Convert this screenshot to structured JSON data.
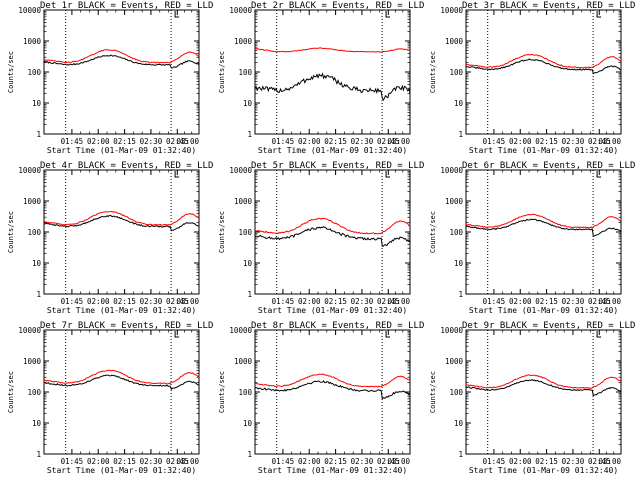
{
  "figure": {
    "background": "#ffffff",
    "events_color": "#000000",
    "lld_color": "#ff0000"
  },
  "chart_data": [
    {
      "type": "line",
      "title": "Det 1r BLACK = Events, RED = LLD",
      "xlabel": "Start Time (01-Mar-09 01:32:40)",
      "ylabel": "Counts/sec",
      "ylog": true,
      "ylim": [
        1,
        10000
      ],
      "yticks": [
        "1",
        "10",
        "100",
        "1000",
        "10000"
      ],
      "xticks": [
        "01:45",
        "02:00",
        "02:15",
        "02:30",
        "02:45",
        "03:00"
      ],
      "xlim": [
        0,
        100
      ],
      "xtick_positions": [
        18,
        35,
        52,
        69,
        86,
        100
      ],
      "markers": [
        14,
        82
      ],
      "series": [
        {
          "name": "BLACK = Events",
          "color": "#000000",
          "base": 170,
          "hump": 2.0,
          "tail_drop": 0.75,
          "noise": 0.02
        },
        {
          "name": "RED = LLD",
          "color": "#ff0000",
          "base": 200,
          "hump": 2.6,
          "tail_drop": 1.0,
          "noise": 0.015
        }
      ]
    },
    {
      "type": "line",
      "title": "Det 2r BLACK = Events, RED = LLD",
      "xlabel": "Start Time (01-Mar-09 01:32:40)",
      "ylabel": "Counts/sec",
      "ylog": true,
      "ylim": [
        1,
        10000
      ],
      "yticks": [
        "1",
        "10",
        "100",
        "1000",
        "10000"
      ],
      "xticks": [
        "01:45",
        "02:00",
        "02:15",
        "02:30",
        "02:45",
        "03:00"
      ],
      "xlim": [
        0,
        100
      ],
      "xtick_positions": [
        18,
        35,
        52,
        69,
        86,
        100
      ],
      "markers": [
        14,
        82
      ],
      "series": [
        {
          "name": "BLACK = Events",
          "color": "#000000",
          "base": 25,
          "hump": 3.0,
          "tail_drop": 0.5,
          "noise": 0.08
        },
        {
          "name": "RED = LLD",
          "color": "#ff0000",
          "base": 450,
          "hump": 1.3,
          "tail_drop": 1.0,
          "noise": 0.01
        }
      ]
    },
    {
      "type": "line",
      "title": "Det 3r BLACK = Events, RED = LLD",
      "xlabel": "Start Time (01-Mar-09 01:32:40)",
      "ylabel": "Counts/sec",
      "ylog": true,
      "ylim": [
        1,
        10000
      ],
      "yticks": [
        "1",
        "10",
        "100",
        "1000",
        "10000"
      ],
      "xticks": [
        "01:45",
        "02:00",
        "02:15",
        "02:30",
        "02:45",
        "03:00"
      ],
      "xlim": [
        0,
        100
      ],
      "xtick_positions": [
        18,
        35,
        52,
        69,
        86,
        100
      ],
      "markers": [
        14,
        82
      ],
      "series": [
        {
          "name": "BLACK = Events",
          "color": "#000000",
          "base": 120,
          "hump": 2.1,
          "tail_drop": 0.7,
          "noise": 0.02
        },
        {
          "name": "RED = LLD",
          "color": "#ff0000",
          "base": 140,
          "hump": 2.6,
          "tail_drop": 1.0,
          "noise": 0.015
        }
      ]
    },
    {
      "type": "line",
      "title": "Det 4r BLACK = Events, RED = LLD",
      "xlabel": "Start Time (01-Mar-09 01:32:40)",
      "ylabel": "Counts/sec",
      "ylog": true,
      "ylim": [
        1,
        10000
      ],
      "yticks": [
        "1",
        "10",
        "100",
        "1000",
        "10000"
      ],
      "xticks": [
        "01:45",
        "02:00",
        "02:15",
        "02:30",
        "02:45",
        "03:00"
      ],
      "xlim": [
        0,
        100
      ],
      "xtick_positions": [
        18,
        35,
        52,
        69,
        86,
        100
      ],
      "markers": [
        14,
        82
      ],
      "series": [
        {
          "name": "BLACK = Events",
          "color": "#000000",
          "base": 150,
          "hump": 2.2,
          "tail_drop": 0.7,
          "noise": 0.02
        },
        {
          "name": "RED = LLD",
          "color": "#ff0000",
          "base": 170,
          "hump": 2.7,
          "tail_drop": 1.0,
          "noise": 0.015
        }
      ]
    },
    {
      "type": "line",
      "title": "Det 5r BLACK = Events, RED = LLD",
      "xlabel": "Start Time (01-Mar-09 01:32:40)",
      "ylabel": "Counts/sec",
      "ylog": true,
      "ylim": [
        1,
        10000
      ],
      "yticks": [
        "1",
        "10",
        "100",
        "1000",
        "10000"
      ],
      "xticks": [
        "01:45",
        "02:00",
        "02:15",
        "02:30",
        "02:45",
        "03:00"
      ],
      "xlim": [
        0,
        100
      ],
      "xtick_positions": [
        18,
        35,
        52,
        69,
        86,
        100
      ],
      "markers": [
        14,
        82
      ],
      "series": [
        {
          "name": "BLACK = Events",
          "color": "#000000",
          "base": 60,
          "hump": 2.3,
          "tail_drop": 0.55,
          "noise": 0.04
        },
        {
          "name": "RED = LLD",
          "color": "#ff0000",
          "base": 90,
          "hump": 3.0,
          "tail_drop": 1.0,
          "noise": 0.02
        }
      ]
    },
    {
      "type": "line",
      "title": "Det 6r BLACK = Events, RED = LLD",
      "xlabel": "Start Time (01-Mar-09 01:32:40)",
      "ylabel": "Counts/sec",
      "ylog": true,
      "ylim": [
        1,
        10000
      ],
      "yticks": [
        "1",
        "10",
        "100",
        "1000",
        "10000"
      ],
      "xticks": [
        "01:45",
        "02:00",
        "02:15",
        "02:30",
        "02:45",
        "03:00"
      ],
      "xlim": [
        0,
        100
      ],
      "xtick_positions": [
        18,
        35,
        52,
        69,
        86,
        100
      ],
      "markers": [
        14,
        82
      ],
      "series": [
        {
          "name": "BLACK = Events",
          "color": "#000000",
          "base": 120,
          "hump": 2.1,
          "tail_drop": 0.6,
          "noise": 0.02
        },
        {
          "name": "RED = LLD",
          "color": "#ff0000",
          "base": 140,
          "hump": 2.6,
          "tail_drop": 1.0,
          "noise": 0.015
        }
      ]
    },
    {
      "type": "line",
      "title": "Det 7r BLACK = Events, RED = LLD",
      "xlabel": "Start Time (01-Mar-09 01:32:40)",
      "ylabel": "Counts/sec",
      "ylog": true,
      "ylim": [
        1,
        10000
      ],
      "yticks": [
        "1",
        "10",
        "100",
        "1000",
        "10000"
      ],
      "xticks": [
        "01:45",
        "02:00",
        "02:15",
        "02:30",
        "02:45",
        "03:00"
      ],
      "xlim": [
        0,
        100
      ],
      "xtick_positions": [
        18,
        35,
        52,
        69,
        86,
        100
      ],
      "markers": [
        14,
        82
      ],
      "series": [
        {
          "name": "BLACK = Events",
          "color": "#000000",
          "base": 160,
          "hump": 2.1,
          "tail_drop": 0.75,
          "noise": 0.02
        },
        {
          "name": "RED = LLD",
          "color": "#ff0000",
          "base": 190,
          "hump": 2.6,
          "tail_drop": 1.0,
          "noise": 0.015
        }
      ]
    },
    {
      "type": "line",
      "title": "Det 8r BLACK = Events, RED = LLD",
      "xlabel": "Start Time (01-Mar-09 01:32:40)",
      "ylabel": "Counts/sec",
      "ylog": true,
      "ylim": [
        1,
        10000
      ],
      "yticks": [
        "1",
        "10",
        "100",
        "1000",
        "10000"
      ],
      "xticks": [
        "01:45",
        "02:00",
        "02:15",
        "02:30",
        "02:45",
        "03:00"
      ],
      "xlim": [
        0,
        100
      ],
      "xtick_positions": [
        18,
        35,
        52,
        69,
        86,
        100
      ],
      "markers": [
        14,
        82
      ],
      "series": [
        {
          "name": "BLACK = Events",
          "color": "#000000",
          "base": 110,
          "hump": 2.0,
          "tail_drop": 0.55,
          "noise": 0.03
        },
        {
          "name": "RED = LLD",
          "color": "#ff0000",
          "base": 150,
          "hump": 2.5,
          "tail_drop": 1.0,
          "noise": 0.015
        }
      ]
    },
    {
      "type": "line",
      "title": "Det 9r BLACK = Events, RED = LLD",
      "xlabel": "Start Time (01-Mar-09 01:32:40)",
      "ylabel": "Counts/sec",
      "ylog": true,
      "ylim": [
        1,
        10000
      ],
      "yticks": [
        "1",
        "10",
        "100",
        "1000",
        "10000"
      ],
      "xticks": [
        "01:45",
        "02:00",
        "02:15",
        "02:30",
        "02:45",
        "03:00"
      ],
      "xlim": [
        0,
        100
      ],
      "xtick_positions": [
        18,
        35,
        52,
        69,
        86,
        100
      ],
      "markers": [
        14,
        82
      ],
      "series": [
        {
          "name": "BLACK = Events",
          "color": "#000000",
          "base": 115,
          "hump": 2.1,
          "tail_drop": 0.65,
          "noise": 0.02
        },
        {
          "name": "RED = LLD",
          "color": "#ff0000",
          "base": 135,
          "hump": 2.6,
          "tail_drop": 1.0,
          "noise": 0.015
        }
      ]
    }
  ]
}
